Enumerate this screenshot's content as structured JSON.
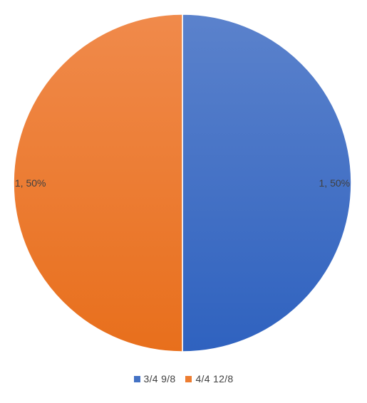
{
  "chart_data": {
    "type": "pie",
    "categories": [
      "3/4 9/8",
      "4/4 12/8"
    ],
    "values": [
      1,
      1
    ],
    "percentages": [
      "50%",
      "50%"
    ],
    "data_labels": [
      "1, 50%",
      "1, 50%"
    ],
    "colors": [
      "#4472C4",
      "#ED7D31"
    ],
    "legend_position": "bottom",
    "title": ""
  }
}
